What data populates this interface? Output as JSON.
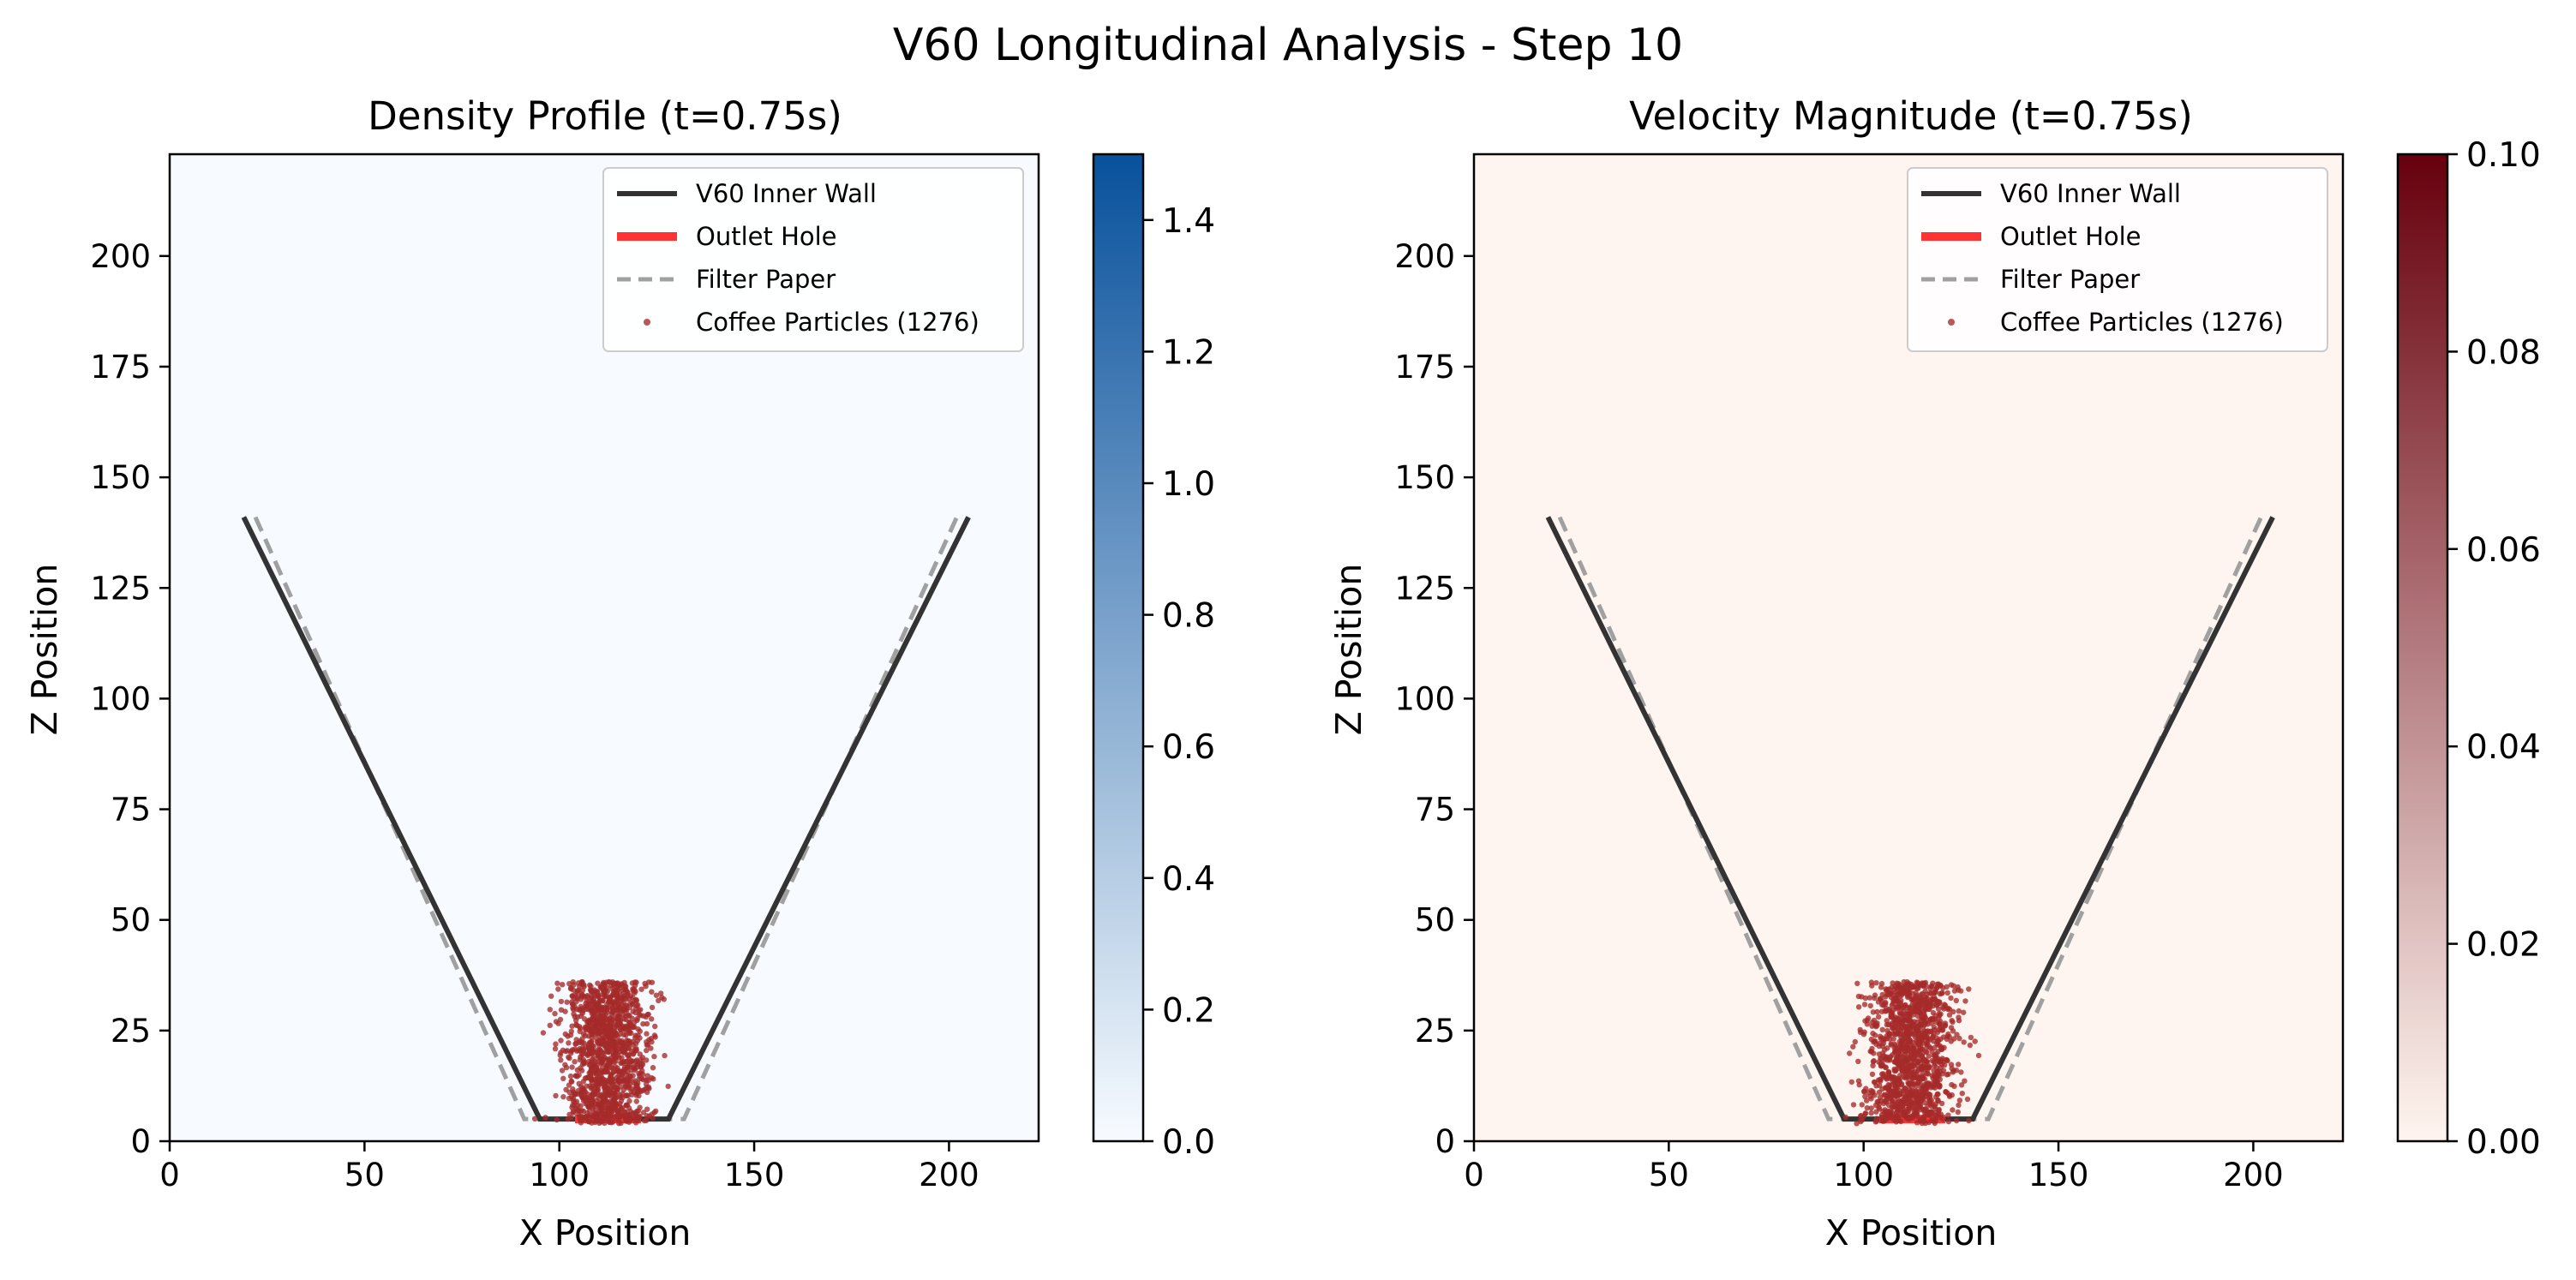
{
  "figure": {
    "title": "V60 Longitudinal Analysis - Step 10"
  },
  "chart_data": [
    {
      "type": "heatmap",
      "title": "Density Profile (t=0.75s)",
      "xlabel": "X Position",
      "ylabel": "Z Position",
      "xlim": [
        0,
        223
      ],
      "ylim": [
        0,
        223
      ],
      "xticks": [
        0,
        50,
        100,
        150,
        200
      ],
      "yticks": [
        0,
        25,
        50,
        75,
        100,
        125,
        150,
        175,
        200
      ],
      "field_value": 0.0,
      "colormap": {
        "name": "Blues",
        "min_color": "#f7fbff",
        "max_color": "#08519c"
      },
      "colorbar": {
        "min": 0.0,
        "max": 1.5,
        "ticks": [
          "0.0",
          "0.2",
          "0.4",
          "0.6",
          "0.8",
          "1.0",
          "1.2",
          "1.4"
        ]
      },
      "legend": {
        "position": "upper right",
        "entries": [
          "V60 Inner Wall",
          "Outlet Hole",
          "Filter Paper",
          "Coffee Particles (1276)"
        ]
      },
      "series": [
        {
          "name": "V60 Inner Wall",
          "type": "line",
          "color": "#333333",
          "points": [
            [
              19,
              141
            ],
            [
              95,
              5
            ],
            [
              128,
              5
            ],
            [
              205,
              141
            ]
          ]
        },
        {
          "name": "Outlet Hole",
          "type": "line",
          "color": "#ff3333",
          "points": [
            [
              104,
              5
            ],
            [
              121,
              5
            ]
          ]
        },
        {
          "name": "Filter Paper",
          "type": "dashed-line",
          "color": "#a0a0a0",
          "points": [
            [
              22,
              141
            ],
            [
              91,
              5
            ],
            [
              132,
              5
            ],
            [
              202,
              141
            ]
          ]
        },
        {
          "name": "Coffee Particles (1276)",
          "type": "scatter",
          "color": "#a52a2a",
          "count": 1276,
          "x_range": [
            91,
            134
          ],
          "z_range": [
            4,
            36
          ],
          "x_center": 112
        }
      ]
    },
    {
      "type": "heatmap",
      "title": "Velocity Magnitude (t=0.75s)",
      "xlabel": "X Position",
      "ylabel": "Z Position",
      "xlim": [
        0,
        223
      ],
      "ylim": [
        0,
        223
      ],
      "xticks": [
        0,
        50,
        100,
        150,
        200
      ],
      "yticks": [
        0,
        25,
        50,
        75,
        100,
        125,
        150,
        175,
        200
      ],
      "field_value": 0.0,
      "colormap": {
        "name": "Reds",
        "min_color": "#fff5f0",
        "max_color": "#67000d"
      },
      "colorbar": {
        "min": 0.0,
        "max": 0.1,
        "ticks": [
          "0.00",
          "0.02",
          "0.04",
          "0.06",
          "0.08",
          "0.10"
        ]
      },
      "legend": {
        "position": "upper right",
        "entries": [
          "V60 Inner Wall",
          "Outlet Hole",
          "Filter Paper",
          "Coffee Particles (1276)"
        ]
      },
      "series": [
        {
          "name": "V60 Inner Wall",
          "type": "line",
          "color": "#333333",
          "points": [
            [
              19,
              141
            ],
            [
              95,
              5
            ],
            [
              128,
              5
            ],
            [
              205,
              141
            ]
          ]
        },
        {
          "name": "Outlet Hole",
          "type": "line",
          "color": "#ff3333",
          "points": [
            [
              104,
              5
            ],
            [
              121,
              5
            ]
          ]
        },
        {
          "name": "Filter Paper",
          "type": "dashed-line",
          "color": "#a0a0a0",
          "points": [
            [
              22,
              141
            ],
            [
              91,
              5
            ],
            [
              132,
              5
            ],
            [
              202,
              141
            ]
          ]
        },
        {
          "name": "Coffee Particles (1276)",
          "type": "scatter",
          "color": "#a52a2a",
          "count": 1276,
          "x_range": [
            91,
            134
          ],
          "z_range": [
            4,
            36
          ],
          "x_center": 112
        }
      ]
    }
  ]
}
